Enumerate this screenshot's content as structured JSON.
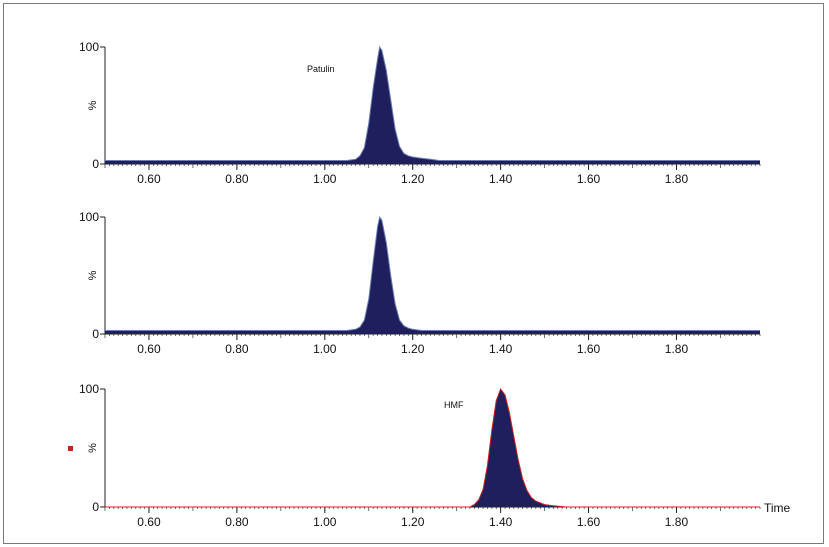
{
  "chart_data": [
    {
      "type": "area",
      "title": "",
      "xlabel": "",
      "ylabel": "%",
      "xlim": [
        0.5,
        1.99
      ],
      "ylim": [
        0,
        100
      ],
      "yticks": [
        "0",
        "100"
      ],
      "xticks": [
        "0.60",
        "0.80",
        "1.00",
        "1.20",
        "1.40",
        "1.60",
        "1.80"
      ],
      "annotation": "Patulin",
      "colors": {
        "fill": "#1f1f5e",
        "baseline": "#6a7fb5"
      },
      "series": [
        {
          "x": [
            0.5,
            1.0,
            1.05,
            1.07,
            1.08,
            1.09,
            1.1,
            1.11,
            1.12,
            1.125,
            1.13,
            1.14,
            1.15,
            1.16,
            1.17,
            1.18,
            1.19,
            1.2,
            1.22,
            1.24,
            1.26,
            1.3,
            1.99
          ],
          "y": [
            3,
            3,
            3,
            4,
            7,
            14,
            35,
            65,
            90,
            100,
            97,
            80,
            55,
            30,
            15,
            9,
            7,
            6,
            5,
            4,
            3,
            3,
            3
          ]
        }
      ]
    },
    {
      "type": "area",
      "title": "",
      "xlabel": "",
      "ylabel": "%",
      "xlim": [
        0.5,
        1.99
      ],
      "ylim": [
        0,
        100
      ],
      "yticks": [
        "0",
        "100"
      ],
      "xticks": [
        "0.60",
        "0.80",
        "1.00",
        "1.20",
        "1.40",
        "1.60",
        "1.80"
      ],
      "annotation": "",
      "colors": {
        "fill": "#1f1f5e",
        "baseline": "#6a7fb5"
      },
      "series": [
        {
          "x": [
            0.5,
            1.0,
            1.05,
            1.07,
            1.08,
            1.09,
            1.1,
            1.11,
            1.12,
            1.125,
            1.13,
            1.14,
            1.15,
            1.16,
            1.17,
            1.18,
            1.19,
            1.2,
            1.22,
            1.24,
            1.99
          ],
          "y": [
            3,
            3,
            3,
            4,
            6,
            12,
            30,
            62,
            92,
            100,
            97,
            78,
            50,
            26,
            12,
            7,
            5,
            4,
            3,
            3,
            3
          ]
        }
      ]
    },
    {
      "type": "area",
      "title": "",
      "xlabel": "Time",
      "ylabel": "%",
      "xlim": [
        0.5,
        1.99
      ],
      "ylim": [
        0,
        100
      ],
      "yticks": [
        "0",
        "100"
      ],
      "xticks": [
        "0.60",
        "0.80",
        "1.00",
        "1.20",
        "1.40",
        "1.60",
        "1.80"
      ],
      "annotation": "HMF",
      "colors": {
        "fill": "#1f1f5e",
        "outline": "#d02020",
        "baseline": "#d02020"
      },
      "series": [
        {
          "x": [
            0.5,
            1.3,
            1.33,
            1.34,
            1.35,
            1.36,
            1.37,
            1.38,
            1.39,
            1.4,
            1.41,
            1.42,
            1.43,
            1.44,
            1.45,
            1.46,
            1.47,
            1.48,
            1.5,
            1.52,
            1.55,
            1.99
          ],
          "y": [
            0,
            0,
            0,
            2,
            6,
            15,
            35,
            65,
            90,
            100,
            95,
            80,
            60,
            40,
            24,
            14,
            8,
            5,
            2,
            1,
            0,
            0
          ]
        }
      ]
    }
  ]
}
